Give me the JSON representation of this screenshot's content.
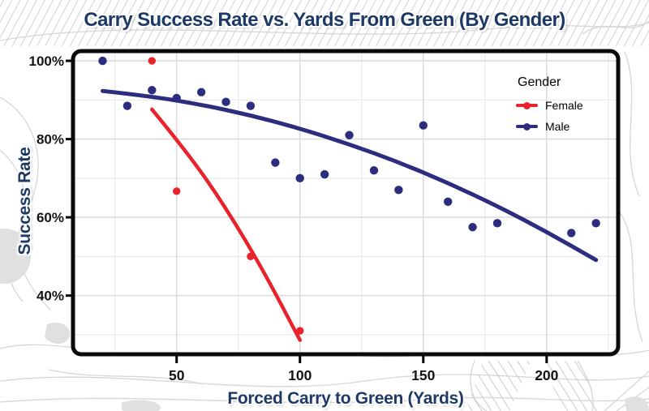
{
  "title": "Carry Success Rate vs. Yards From Green (By Gender)",
  "axes": {
    "x_title": "Forced Carry to Green (Yards)",
    "y_title": "Success Rate"
  },
  "legend": {
    "title": "Gender",
    "items": [
      {
        "label": "Female",
        "color": "#e8232b"
      },
      {
        "label": "Male",
        "color": "#2d2d80"
      }
    ]
  },
  "colors": {
    "title_navy": "#1d3a66",
    "female_red": "#e8232b",
    "male_navy": "#2d2d80",
    "tick_label": "#141414",
    "grid_major": "#dcdcdc",
    "grid_minor": "#eaeaea",
    "plot_border": "#0b0b0b",
    "contour_gray": "#d6d6d6"
  },
  "chart_data": {
    "type": "scatter",
    "title": "Carry Success Rate vs. Yards From Green (By Gender)",
    "xlabel": "Forced Carry to Green (Yards)",
    "ylabel": "Success Rate",
    "xlim": [
      8,
      229
    ],
    "ylim": [
      25,
      102.5
    ],
    "x_major_ticks": [
      50,
      100,
      150,
      200
    ],
    "x_minor_gridlines": [
      25,
      75,
      125,
      175,
      225
    ],
    "y_major_ticks": [
      40,
      60,
      80,
      100
    ],
    "y_minor_gridlines": [
      30,
      50,
      70,
      90
    ],
    "y_tick_suffix": "%",
    "grid": true,
    "legend_position": "inside top-right",
    "series": [
      {
        "name": "Female",
        "color": "#e8232b",
        "points": [
          [
            40,
            100
          ],
          [
            50,
            66.7
          ],
          [
            80,
            50
          ],
          [
            100,
            31
          ]
        ],
        "trend_line": [
          [
            40,
            87.6
          ],
          [
            55,
            76.1
          ],
          [
            70,
            62.4
          ],
          [
            85,
            46.6
          ],
          [
            100,
            28.6
          ]
        ]
      },
      {
        "name": "Male",
        "color": "#2d2d80",
        "points": [
          [
            20,
            100
          ],
          [
            30,
            88.5
          ],
          [
            40,
            92.5
          ],
          [
            50,
            90.5
          ],
          [
            60,
            92
          ],
          [
            70,
            89.5
          ],
          [
            80,
            88.5
          ],
          [
            90,
            74
          ],
          [
            100,
            70
          ],
          [
            110,
            71
          ],
          [
            120,
            81
          ],
          [
            130,
            72
          ],
          [
            140,
            67
          ],
          [
            150,
            83.5
          ],
          [
            160,
            64
          ],
          [
            170,
            57.5
          ],
          [
            180,
            58.5
          ],
          [
            210,
            56
          ],
          [
            220,
            58.5
          ]
        ],
        "trend_line": [
          [
            20,
            92.3
          ],
          [
            40,
            90.9
          ],
          [
            60,
            88.8
          ],
          [
            80,
            86.1
          ],
          [
            100,
            82.7
          ],
          [
            120,
            78.7
          ],
          [
            140,
            74.1
          ],
          [
            160,
            68.8
          ],
          [
            180,
            62.9
          ],
          [
            200,
            56.3
          ],
          [
            220,
            49.1
          ]
        ]
      }
    ]
  }
}
